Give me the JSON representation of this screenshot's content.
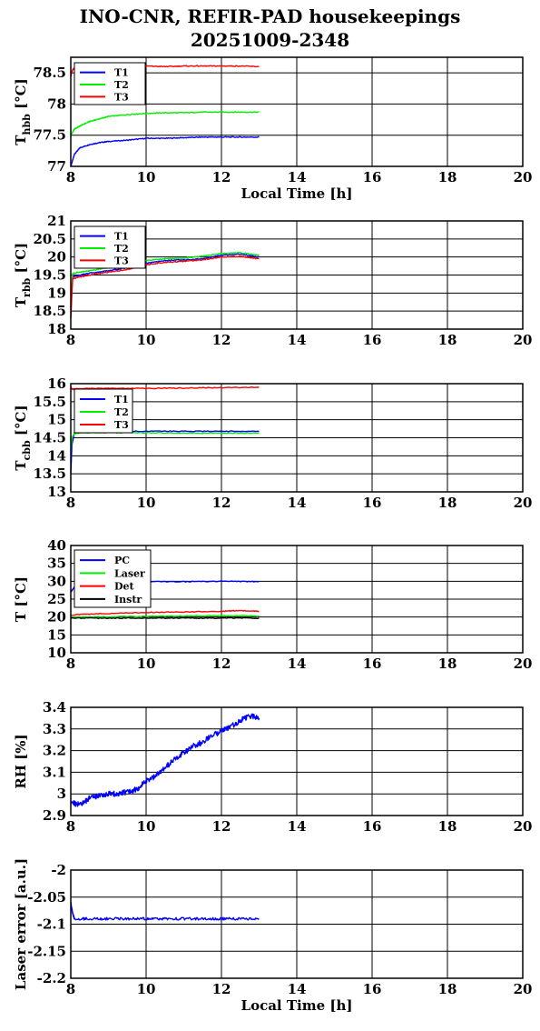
{
  "title": {
    "line1": "INO-CNR, REFIR-PAD housekeepings",
    "line2": "20251009-2348"
  },
  "chart_data": [
    {
      "type": "line",
      "ylabel": "T",
      "ylabel_sub": "hbb",
      "ylabel_unit": "[°C]",
      "xlabel": "Local Time [h]",
      "xlim": [
        8,
        20
      ],
      "ylim": [
        77,
        78.75
      ],
      "xticks": [
        "8",
        "10",
        "12",
        "14",
        "16",
        "18",
        "20"
      ],
      "yticks": [
        "77",
        "77.5",
        "78",
        "78.5"
      ],
      "ytick_values": [
        77,
        77.5,
        78,
        78.5
      ],
      "legend": "top-left",
      "series": [
        {
          "name": "T1",
          "color": "#0000ff",
          "x": [
            8.0,
            8.1,
            8.25,
            8.5,
            8.75,
            9.0,
            9.5,
            10.0,
            10.5,
            11.0,
            11.5,
            12.0,
            12.5,
            13.0
          ],
          "y": [
            77.0,
            77.2,
            77.3,
            77.35,
            77.38,
            77.4,
            77.42,
            77.45,
            77.45,
            77.46,
            77.47,
            77.47,
            77.47,
            77.47
          ]
        },
        {
          "name": "T2",
          "color": "#00ee00",
          "x": [
            8.0,
            8.1,
            8.25,
            8.5,
            8.75,
            9.0,
            9.5,
            10.0,
            10.5,
            11.0,
            11.5,
            12.0,
            12.5,
            13.0
          ],
          "y": [
            77.5,
            77.6,
            77.65,
            77.72,
            77.76,
            77.8,
            77.83,
            77.85,
            77.86,
            77.86,
            77.87,
            77.87,
            77.87,
            77.87
          ]
        },
        {
          "name": "T3",
          "color": "#ff0000",
          "x": [
            8.0,
            8.05,
            8.1,
            8.25,
            8.5,
            9.0,
            9.5,
            10.0,
            10.5,
            11.0,
            11.5,
            12.0,
            12.5,
            13.0
          ],
          "y": [
            78.45,
            78.55,
            78.58,
            78.6,
            78.6,
            78.6,
            78.61,
            78.61,
            78.6,
            78.61,
            78.61,
            78.61,
            78.61,
            78.6
          ]
        }
      ]
    },
    {
      "type": "line",
      "ylabel": "T",
      "ylabel_sub": "rbb",
      "ylabel_unit": "[°C]",
      "xlabel": "",
      "xlim": [
        8,
        20
      ],
      "ylim": [
        18,
        21
      ],
      "xticks": [
        "8",
        "10",
        "12",
        "14",
        "16",
        "18",
        "20"
      ],
      "yticks": [
        "18",
        "18.5",
        "19",
        "19.5",
        "20",
        "20.5",
        "21"
      ],
      "ytick_values": [
        18,
        18.5,
        19,
        19.5,
        20,
        20.5,
        21
      ],
      "legend": "top-left",
      "series": [
        {
          "name": "T1",
          "color": "#0000ff",
          "x": [
            8.0,
            8.05,
            8.25,
            8.5,
            9.0,
            9.5,
            10.0,
            10.5,
            11.0,
            11.5,
            12.0,
            12.5,
            13.0
          ],
          "y": [
            18.6,
            19.45,
            19.5,
            19.55,
            19.62,
            19.7,
            19.82,
            19.9,
            19.92,
            19.95,
            20.05,
            20.08,
            20.0
          ]
        },
        {
          "name": "T2",
          "color": "#00ee00",
          "x": [
            8.0,
            8.05,
            8.25,
            8.5,
            9.0,
            9.5,
            10.0,
            10.5,
            11.0,
            11.5,
            12.0,
            12.5,
            13.0
          ],
          "y": [
            18.7,
            19.55,
            19.58,
            19.62,
            19.7,
            19.78,
            19.9,
            19.95,
            19.97,
            20.02,
            20.1,
            20.12,
            20.05
          ]
        },
        {
          "name": "T3",
          "color": "#ff0000",
          "x": [
            8.0,
            8.05,
            8.25,
            8.5,
            9.0,
            9.5,
            10.0,
            10.5,
            11.0,
            11.5,
            12.0,
            12.5,
            13.0
          ],
          "y": [
            18.3,
            19.4,
            19.45,
            19.5,
            19.58,
            19.65,
            19.78,
            19.85,
            19.88,
            19.92,
            20.0,
            20.02,
            19.95
          ]
        }
      ]
    },
    {
      "type": "line",
      "ylabel": "T",
      "ylabel_sub": "cbb",
      "ylabel_unit": "[°C]",
      "xlabel": "",
      "xlim": [
        8,
        20
      ],
      "ylim": [
        13,
        16
      ],
      "xticks": [
        "8",
        "10",
        "12",
        "14",
        "16",
        "18",
        "20"
      ],
      "yticks": [
        "13",
        "13.5",
        "14",
        "14.5",
        "15",
        "15.5",
        "16"
      ],
      "ytick_values": [
        13,
        13.5,
        14,
        14.5,
        15,
        15.5,
        16
      ],
      "legend": "top-left",
      "series": [
        {
          "name": "T1",
          "color": "#0000ff",
          "x": [
            8.0,
            8.03,
            8.1,
            8.25,
            8.5,
            9.0,
            10.0,
            11.0,
            12.0,
            13.0
          ],
          "y": [
            13.5,
            14.3,
            14.65,
            14.68,
            14.68,
            14.68,
            14.68,
            14.68,
            14.68,
            14.68
          ]
        },
        {
          "name": "T2",
          "color": "#00ee00",
          "x": [
            8.0,
            8.03,
            8.1,
            8.25,
            8.5,
            9.0,
            10.0,
            11.0,
            12.0,
            13.0
          ],
          "y": [
            14.1,
            14.5,
            14.62,
            14.64,
            14.64,
            14.64,
            14.64,
            14.63,
            14.63,
            14.63
          ]
        },
        {
          "name": "T3",
          "color": "#ff0000",
          "x": [
            8.0,
            8.03,
            8.1,
            8.25,
            8.5,
            9.0,
            10.0,
            11.0,
            12.0,
            13.0
          ],
          "y": [
            15.9,
            15.85,
            15.85,
            15.86,
            15.87,
            15.87,
            15.87,
            15.88,
            15.89,
            15.9
          ]
        }
      ]
    },
    {
      "type": "line",
      "ylabel": "T [°C]",
      "xlabel": "",
      "xlim": [
        8,
        20
      ],
      "ylim": [
        10,
        40
      ],
      "xticks": [
        "8",
        "10",
        "12",
        "14",
        "16",
        "18",
        "20"
      ],
      "yticks": [
        "10",
        "15",
        "20",
        "25",
        "30",
        "35",
        "40"
      ],
      "ytick_values": [
        10,
        15,
        20,
        25,
        30,
        35,
        40
      ],
      "legend": "top-left",
      "series": [
        {
          "name": "PC",
          "color": "#0000ff",
          "x": [
            8.0,
            8.1,
            8.25,
            8.5,
            9.0,
            10.0,
            11.0,
            12.0,
            13.0
          ],
          "y": [
            27.0,
            28.5,
            29.3,
            29.6,
            29.8,
            29.9,
            29.9,
            30.0,
            29.9
          ]
        },
        {
          "name": "Laser",
          "color": "#00ee00",
          "x": [
            8.0,
            9.0,
            10.0,
            11.0,
            12.0,
            13.0
          ],
          "y": [
            20.0,
            20.1,
            20.2,
            20.3,
            20.4,
            20.3
          ]
        },
        {
          "name": "Det",
          "color": "#ff0000",
          "x": [
            8.0,
            9.0,
            10.0,
            11.0,
            12.0,
            12.5,
            13.0
          ],
          "y": [
            20.6,
            21.0,
            21.3,
            21.4,
            21.6,
            21.8,
            21.6
          ]
        },
        {
          "name": "Instr",
          "color": "#000000",
          "x": [
            8.0,
            9.0,
            10.0,
            11.0,
            12.0,
            13.0
          ],
          "y": [
            19.7,
            19.7,
            19.7,
            19.7,
            19.7,
            19.7
          ]
        }
      ]
    },
    {
      "type": "line",
      "ylabel": "RH [%]",
      "xlabel": "",
      "xlim": [
        8,
        20
      ],
      "ylim": [
        2.9,
        3.4
      ],
      "xticks": [
        "8",
        "10",
        "12",
        "14",
        "16",
        "18",
        "20"
      ],
      "yticks": [
        "2.9",
        "3",
        "3.1",
        "3.2",
        "3.3",
        "3.4"
      ],
      "ytick_values": [
        2.9,
        3.0,
        3.1,
        3.2,
        3.3,
        3.4
      ],
      "legend": "none",
      "series": [
        {
          "color": "#0000ff",
          "x": [
            8.0,
            8.25,
            8.5,
            8.75,
            9.0,
            9.25,
            9.5,
            9.75,
            10.0,
            10.25,
            10.5,
            10.75,
            11.0,
            11.25,
            11.5,
            11.75,
            12.0,
            12.25,
            12.5,
            12.75,
            13.0
          ],
          "y": [
            2.96,
            2.95,
            2.98,
            2.99,
            3.0,
            3.0,
            3.01,
            3.02,
            3.06,
            3.08,
            3.12,
            3.16,
            3.19,
            3.22,
            3.24,
            3.27,
            3.29,
            3.31,
            3.34,
            3.36,
            3.35
          ]
        }
      ]
    },
    {
      "type": "line",
      "ylabel": "Laser error [a.u.]",
      "xlabel": "Local Time [h]",
      "xlim": [
        8,
        20
      ],
      "ylim": [
        -2.2,
        -2.0
      ],
      "xticks": [
        "8",
        "10",
        "12",
        "14",
        "16",
        "18",
        "20"
      ],
      "yticks": [
        "-2.2",
        "-2.15",
        "-2.1",
        "-2.05",
        "-2"
      ],
      "ytick_values": [
        -2.2,
        -2.15,
        -2.1,
        -2.05,
        -2.0
      ],
      "legend": "none",
      "series": [
        {
          "color": "#0000ff",
          "x": [
            8.0,
            8.05,
            8.1,
            8.5,
            9.0,
            9.5,
            10.0,
            10.5,
            11.0,
            11.5,
            12.0,
            12.5,
            13.0
          ],
          "y": [
            -2.06,
            -2.08,
            -2.09,
            -2.09,
            -2.09,
            -2.09,
            -2.09,
            -2.09,
            -2.09,
            -2.09,
            -2.09,
            -2.09,
            -2.09
          ]
        }
      ]
    }
  ]
}
